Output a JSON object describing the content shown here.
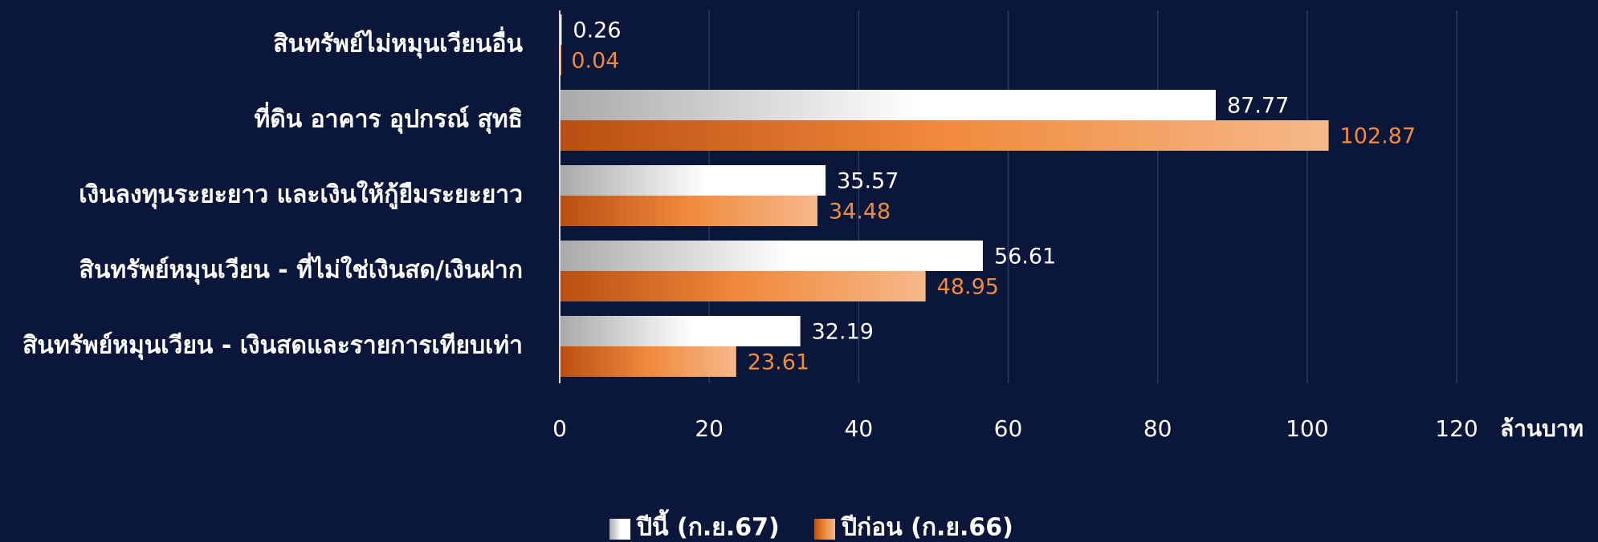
{
  "chart_data": {
    "type": "hbar",
    "categories": [
      "สินทรัพย์ไม่หมุนเวียนอื่น",
      "ที่ดิน อาคาร อุปกรณ์ สุทธิ",
      "เงินลงทุนระยะยาว และเงินให้กู้ยืมระยะยาว",
      "สินทรัพย์หมุนเวียน - ที่ไม่ใช่เงินสด/เงินฝาก",
      "สินทรัพย์หมุนเวียน - เงินสดและรายการเทียบเท่า"
    ],
    "series": [
      {
        "name": "ปีนี้ (ก.ย.67)",
        "color": "#ffffff",
        "values": [
          0.26,
          87.77,
          35.57,
          56.61,
          32.19
        ]
      },
      {
        "name": "ปีก่อน (ก.ย.66)",
        "color": "#f08a3c",
        "values": [
          0.04,
          102.87,
          34.48,
          48.95,
          23.61
        ]
      }
    ],
    "xlabel": "ล้านบาท",
    "xlim": [
      0,
      120
    ],
    "xticks": [
      0,
      20,
      40,
      60,
      80,
      100,
      120
    ],
    "grid": true,
    "legend": "bottom"
  }
}
